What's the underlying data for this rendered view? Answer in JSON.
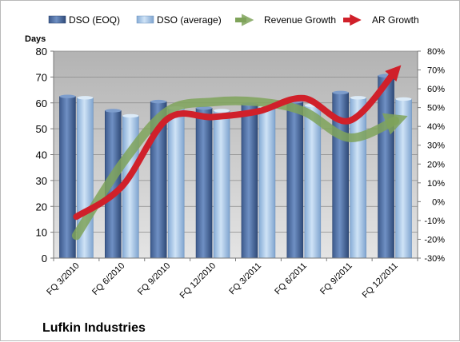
{
  "chart_data": {
    "type": "bar",
    "title": "Lufkin Industries",
    "y_left_label": "Days",
    "y_left_range": [
      0,
      80
    ],
    "y_left_ticks": [
      "0",
      "10",
      "20",
      "30",
      "40",
      "50",
      "60",
      "70",
      "80"
    ],
    "y_right_range": [
      -30,
      80
    ],
    "y_right_ticks": [
      "-30%",
      "-20%",
      "-10%",
      "0%",
      "10%",
      "20%",
      "30%",
      "40%",
      "50%",
      "60%",
      "70%",
      "80%"
    ],
    "categories": [
      "FQ 3/2010",
      "FQ 6/2010",
      "FQ 9/2010",
      "FQ 12/2010",
      "FQ 3/2011",
      "FQ 6/2011",
      "FQ 9/2011",
      "FQ 12/2011"
    ],
    "series": [
      {
        "name": "DSO (EOQ)",
        "kind": "bar",
        "axis": "left",
        "values": [
          62.5,
          57,
          60.5,
          58,
          59.5,
          60.5,
          64,
          70.5
        ]
      },
      {
        "name": "DSO (average)",
        "kind": "bar",
        "axis": "left",
        "values": [
          62,
          55,
          58,
          57,
          58.5,
          59,
          62,
          61.5
        ]
      },
      {
        "name": "Revenue Growth",
        "kind": "line-arrow",
        "axis": "right",
        "values": [
          -18,
          20,
          48,
          53,
          53,
          48,
          34,
          43
        ]
      },
      {
        "name": "AR Growth",
        "kind": "line-arrow",
        "axis": "right",
        "values": [
          -8,
          8,
          44,
          45,
          48,
          55,
          43,
          69
        ]
      }
    ],
    "legend_position": "top",
    "grid": true,
    "colors": {
      "bar_eoq": "#4f6fa3",
      "bar_avg": "#9ec3e6",
      "revenue": "#7fa35a",
      "ar": "#d0202a",
      "plot_bg": "#c0c0c0"
    }
  }
}
